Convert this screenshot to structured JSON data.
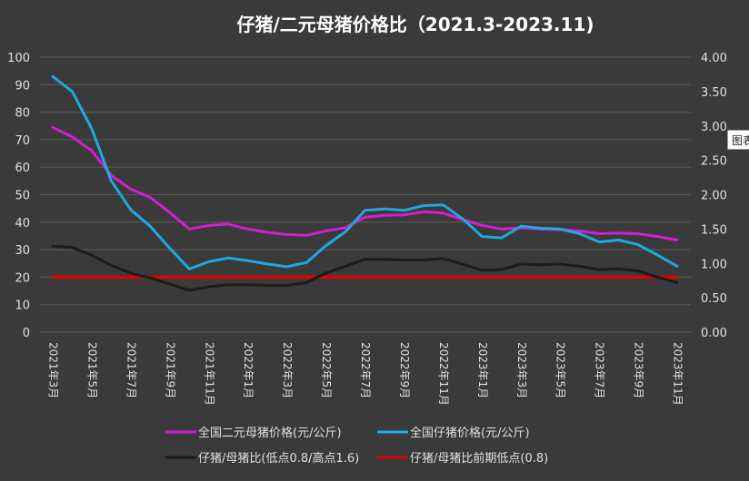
{
  "chart_data": {
    "type": "line",
    "title": "仔猪/二元母猪价格比（2021.3-2023.11)",
    "categories": [
      "2021年3月",
      "2021年4月",
      "2021年5月",
      "2021年6月",
      "2021年7月",
      "2021年8月",
      "2021年9月",
      "2021年10月",
      "2021年11月",
      "2021年12月",
      "2022年1月",
      "2022年2月",
      "2022年3月",
      "2022年4月",
      "2022年5月",
      "2022年6月",
      "2022年7月",
      "2022年8月",
      "2022年9月",
      "2022年10月",
      "2022年11月",
      "2022年12月",
      "2023年1月",
      "2023年2月",
      "2023年3月",
      "2023年4月",
      "2023年5月",
      "2023年6月",
      "2023年7月",
      "2023年8月",
      "2023年9月",
      "2023年10月",
      "2023年11月"
    ],
    "tick_labels": [
      "2021年3月",
      "2021年5月",
      "2021年7月",
      "2021年9月",
      "2021年11月",
      "2022年1月",
      "2022年3月",
      "2022年5月",
      "2022年7月",
      "2022年9月",
      "2022年11月",
      "2023年1月",
      "2023年3月",
      "2023年5月",
      "2023年7月",
      "2023年9月",
      "2023年11月"
    ],
    "left_axis": {
      "ylim": [
        0,
        100
      ],
      "ticks": [
        "0",
        "10",
        "20",
        "30",
        "40",
        "50",
        "60",
        "70",
        "80",
        "90",
        "100"
      ]
    },
    "right_axis": {
      "ylim": [
        0,
        4
      ],
      "ticks": [
        "0.00",
        "0.50",
        "1.00",
        "1.50",
        "2.00",
        "2.50",
        "3.00",
        "3.50",
        "4.00"
      ]
    },
    "grid": true,
    "legend_position": "bottom",
    "series": [
      {
        "name": "全国二元母猪价格(元/公斤)",
        "color": "#d11fd1",
        "axis": "left",
        "values": [
          74.5,
          71,
          66,
          57,
          52,
          49,
          43.5,
          37.5,
          38.8,
          39.3,
          37.5,
          36.3,
          35.5,
          35.2,
          36.8,
          38,
          41.8,
          42.5,
          42.6,
          43.8,
          43.3,
          41,
          38.8,
          37.5,
          38,
          37.5,
          37.3,
          36.8,
          35.8,
          36,
          35.8,
          34.8,
          33.5
        ]
      },
      {
        "name": "全国仔猪价格(元/公斤)",
        "color": "#1fa8e1",
        "axis": "left",
        "values": [
          93,
          87.5,
          74,
          55,
          44.5,
          38.5,
          30.5,
          23,
          25.6,
          27,
          26,
          24.8,
          23.8,
          25.3,
          31.5,
          36.5,
          44.3,
          44.8,
          44.3,
          46,
          46.3,
          41.3,
          34.8,
          34.3,
          38.5,
          37.8,
          37.5,
          35.8,
          32.8,
          33.5,
          31.8,
          28,
          24
        ]
      },
      {
        "name": "仔猪/母猪比(低点0.8/高点1.6)",
        "color": "#1c1c1c",
        "axis": "right",
        "values": [
          1.25,
          1.23,
          1.12,
          0.97,
          0.86,
          0.79,
          0.7,
          0.61,
          0.66,
          0.69,
          0.69,
          0.68,
          0.68,
          0.72,
          0.86,
          0.96,
          1.06,
          1.06,
          1.05,
          1.05,
          1.07,
          0.99,
          0.9,
          0.91,
          0.99,
          0.98,
          0.99,
          0.96,
          0.91,
          0.92,
          0.89,
          0.8,
          0.72
        ]
      },
      {
        "name": "仔猪/母猪比前期低点(0.8)",
        "color": "#e00000",
        "axis": "right",
        "values": [
          0.8,
          0.8,
          0.8,
          0.8,
          0.8,
          0.8,
          0.8,
          0.8,
          0.8,
          0.8,
          0.8,
          0.8,
          0.8,
          0.8,
          0.8,
          0.8,
          0.8,
          0.8,
          0.8,
          0.8,
          0.8,
          0.8,
          0.8,
          0.8,
          0.8,
          0.8,
          0.8,
          0.8,
          0.8,
          0.8,
          0.8,
          0.8,
          0.8
        ]
      }
    ]
  },
  "tooltip_label": "图表"
}
